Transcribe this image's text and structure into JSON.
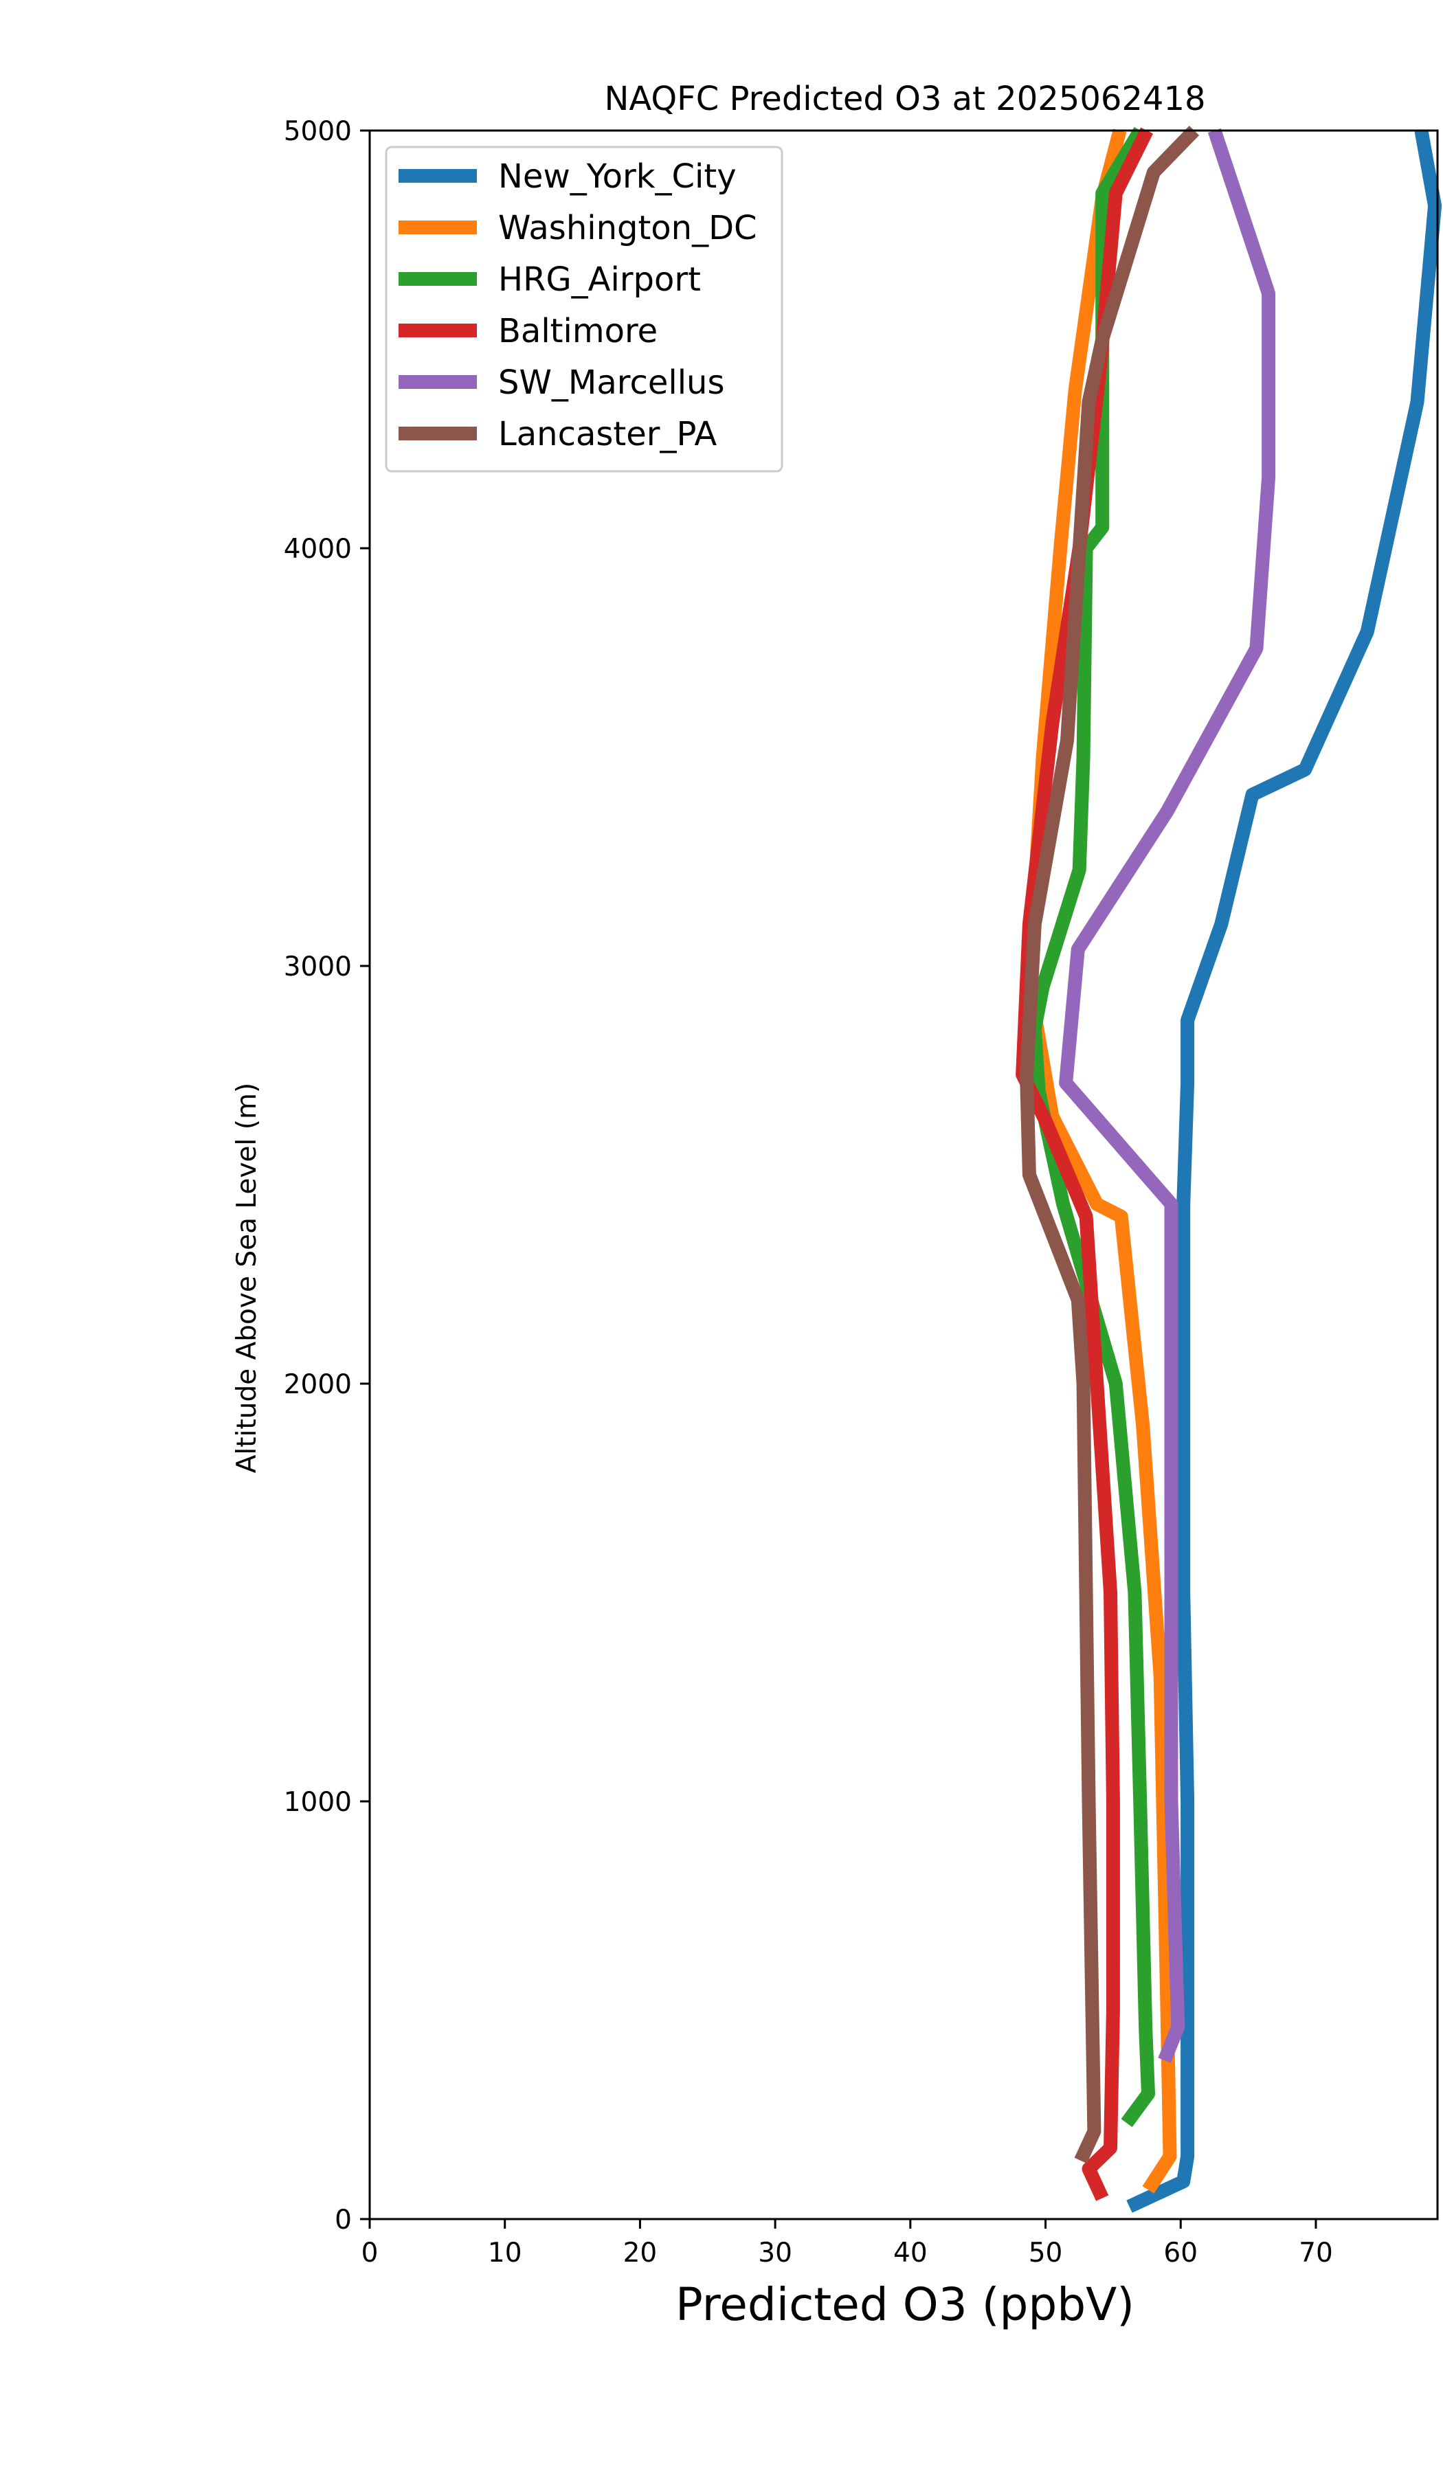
{
  "chart_data": {
    "type": "line",
    "title": "NAQFC Predicted O3 at 2025062418",
    "xlabel": "Predicted O3 (ppbV)",
    "ylabel": "Altitude Above Sea Level (m)",
    "xlim": [
      0,
      79
    ],
    "ylim": [
      0,
      5000
    ],
    "xticks": [
      0,
      10,
      20,
      30,
      40,
      50,
      60,
      70
    ],
    "yticks": [
      0,
      1000,
      2000,
      3000,
      4000,
      5000
    ],
    "grid": false,
    "legend_position": "top-left",
    "series": [
      {
        "name": "New_York_City",
        "color": "#1f77b4",
        "x": [
          56.2,
          60.2,
          60.5,
          60.5,
          60.5,
          60.2,
          60.2,
          60.2,
          60.5,
          60.5,
          63.0,
          65.3,
          69.2,
          73.8,
          77.5,
          78.8,
          77.8
        ],
        "y": [
          30,
          90,
          150,
          460,
          1000,
          1500,
          2000,
          2430,
          2720,
          2870,
          3100,
          3410,
          3470,
          3800,
          4350,
          4820,
          5000
        ]
      },
      {
        "name": "Washington_DC",
        "color": "#ff7f0e",
        "x": [
          57.6,
          59.2,
          59.0,
          58.5,
          57.2,
          55.6,
          53.8,
          50.5,
          48.8,
          49.8,
          51.1,
          52.2,
          54.2,
          55.5
        ],
        "y": [
          70,
          150,
          500,
          1300,
          1900,
          2400,
          2430,
          2640,
          2960,
          3500,
          4000,
          4380,
          4840,
          5000
        ]
      },
      {
        "name": "HRG_Airport",
        "color": "#2ca02c",
        "x": [
          56.0,
          57.6,
          57.4,
          57.0,
          56.6,
          55.2,
          51.3,
          49.5,
          49.2,
          49.8,
          52.5,
          52.8,
          53.0,
          54.2,
          54.2,
          57.0
        ],
        "y": [
          230,
          300,
          460,
          1000,
          1500,
          2000,
          2430,
          2700,
          2850,
          2950,
          3230,
          3500,
          4000,
          4050,
          4850,
          5000
        ]
      },
      {
        "name": "Baltimore",
        "color": "#d62728",
        "x": [
          54.2,
          53.2,
          54.8,
          55.0,
          55.0,
          54.8,
          53.0,
          50.0,
          48.3,
          48.8,
          50.5,
          52.5,
          54.0,
          55.2,
          57.5
        ],
        "y": [
          50,
          120,
          170,
          500,
          1000,
          1500,
          2400,
          2630,
          2740,
          3100,
          3580,
          4000,
          4420,
          4850,
          5000
        ]
      },
      {
        "name": "SW_Marcellus",
        "color": "#9467bd",
        "x": [
          58.8,
          59.8,
          59.3,
          59.3,
          51.5,
          52.4,
          59.0,
          65.6,
          66.5,
          66.5,
          62.5
        ],
        "y": [
          380,
          460,
          1000,
          2430,
          2720,
          3040,
          3370,
          3760,
          4170,
          4610,
          5000
        ]
      },
      {
        "name": "Lancaster_PA",
        "color": "#8c564b",
        "x": [
          52.6,
          53.6,
          53.2,
          52.8,
          52.4,
          48.8,
          48.6,
          49.2,
          51.6,
          53.2,
          54.2,
          58.0,
          61.0
        ],
        "y": [
          140,
          210,
          1000,
          2000,
          2200,
          2500,
          2740,
          3100,
          3540,
          4350,
          4500,
          4900,
          5000
        ]
      }
    ]
  }
}
